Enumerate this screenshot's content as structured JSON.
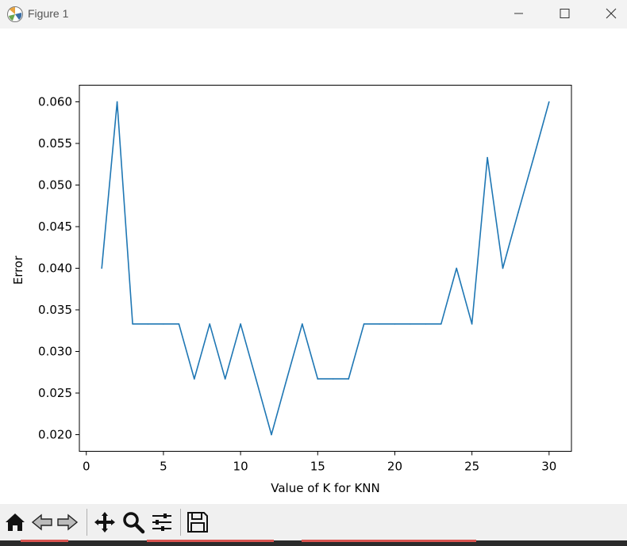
{
  "window": {
    "title": "Figure 1"
  },
  "toolbar": {
    "buttons": [
      {
        "name": "home-icon"
      },
      {
        "name": "back-icon"
      },
      {
        "name": "forward-icon"
      },
      {
        "name": "pan-icon"
      },
      {
        "name": "zoom-icon"
      },
      {
        "name": "configure-subplots-icon"
      },
      {
        "name": "save-icon"
      }
    ]
  },
  "colors": {
    "line": "#1f77b4",
    "titlebar": "#f3f3f3",
    "toolbar": "#f0f0f0"
  },
  "chart_data": {
    "type": "line",
    "title": "",
    "xlabel": "Value of K for KNN",
    "ylabel": "Error",
    "xlim": [
      -0.45,
      31.45
    ],
    "ylim": [
      0.018,
      0.062
    ],
    "xticks": [
      0,
      5,
      10,
      15,
      20,
      25,
      30
    ],
    "xtick_labels": [
      "0",
      "5",
      "10",
      "15",
      "20",
      "25",
      "30"
    ],
    "yticks": [
      0.02,
      0.025,
      0.03,
      0.035,
      0.04,
      0.045,
      0.05,
      0.055,
      0.06
    ],
    "ytick_labels": [
      "0.020",
      "0.025",
      "0.030",
      "0.035",
      "0.040",
      "0.045",
      "0.050",
      "0.055",
      "0.060"
    ],
    "grid": false,
    "series": [
      {
        "x": [
          1,
          2,
          3,
          4,
          5,
          6,
          7,
          8,
          9,
          10,
          11,
          12,
          13,
          14,
          15,
          16,
          17,
          18,
          19,
          20,
          21,
          22,
          23,
          24,
          25,
          26,
          27,
          28,
          29,
          30
        ],
        "values": [
          0.04,
          0.06,
          0.0333,
          0.0333,
          0.0333,
          0.0333,
          0.0267,
          0.0333,
          0.0267,
          0.0333,
          0.0267,
          0.02,
          0.0267,
          0.0333,
          0.0267,
          0.0267,
          0.0267,
          0.0333,
          0.0333,
          0.0333,
          0.0333,
          0.0333,
          0.0333,
          0.04,
          0.0333,
          0.0533,
          0.04,
          0.0467,
          0.0533,
          0.06
        ]
      }
    ]
  }
}
